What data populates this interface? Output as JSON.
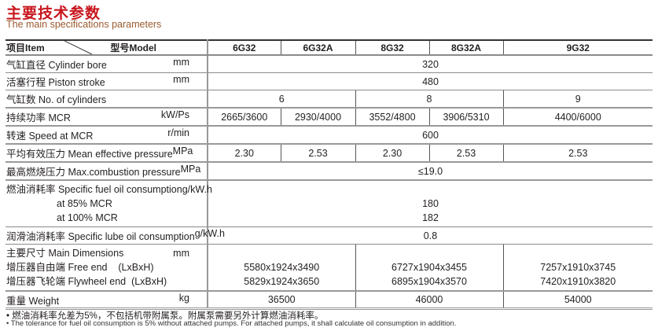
{
  "title": "主要技术参数",
  "subtitle": "The main specifications parameters",
  "header": {
    "item": "项目Item",
    "model": "型号Model",
    "models": [
      "6G32",
      "6G32A",
      "8G32",
      "8G32A",
      "9G32"
    ]
  },
  "rows": {
    "bore": {
      "label": "气缸直径 Cylinder bore",
      "unit": "mm",
      "value": "320"
    },
    "stroke": {
      "label": "活塞行程 Piston stroke",
      "unit": "mm",
      "value": "480"
    },
    "cylinders": {
      "label": "气缸数 No. of cylinders",
      "values": [
        "6",
        "8",
        "9"
      ]
    },
    "mcr": {
      "label": "持续功率 MCR",
      "unit": "kW/Ps",
      "values": [
        "2665/3600",
        "2930/4000",
        "3552/4800",
        "3906/5310",
        "4400/6000"
      ]
    },
    "speed": {
      "label": "转速 Speed at MCR",
      "unit": "r/min",
      "value": "600"
    },
    "mep": {
      "label": "平均有效压力 Mean effective pressure",
      "unit": "MPa",
      "values": [
        "2.30",
        "2.53",
        "2.30",
        "2.53",
        "2.53"
      ]
    },
    "pmax": {
      "label": "最高燃烧压力  Max.combustion pressure",
      "unit": "MPa",
      "value": "≤19.0"
    },
    "sfoc": {
      "label": "燃油消耗率  Specific fuel oil consumption",
      "unit": "g/kW.h",
      "sub1": "at 85% MCR",
      "sub2": "at 100% MCR",
      "v1": "180",
      "v2": "182"
    },
    "lube": {
      "label": "润滑油消耗率 Specific lube oil consumption",
      "unit": "g/kW.h",
      "value": "0.8"
    },
    "dims": {
      "label": "主要尺寸  Main Dimensions",
      "unit": "mm",
      "free_label": "增压器自由端 Free end    (LxBxH)",
      "fly_label": "增压器飞轮端 Flywheel end  (LxBxH)",
      "free": [
        "5580x1924x3490",
        "6727x1904x3455",
        "7257x1910x3745"
      ],
      "fly": [
        "5829x1924x3650",
        "6895x1904x3570",
        "7420x1910x3820"
      ]
    },
    "weight": {
      "label": "重量 Weight",
      "unit": "kg",
      "values": [
        "36500",
        "46000",
        "54000"
      ]
    }
  },
  "notes": [
    "• 燃油消耗率允差为5%，不包括机带附属泵。附属泵需要另外计算燃油消耗率。",
    "• The tolerance for fuel oil consumption is 5% without attached pumps. For attached pumps, it shall calculate oil consumption in addition."
  ]
}
